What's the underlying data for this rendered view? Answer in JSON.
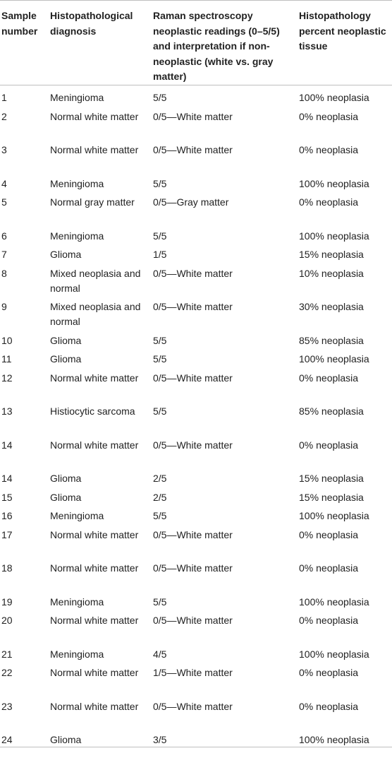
{
  "headers": [
    "Sample number",
    "Histopathological diagnosis",
    "Raman spectroscopy neoplastic readings (0–5/5) and interpretation if non-neoplastic (white vs. gray matter)",
    "Histopathology percent neoplastic tissue"
  ],
  "rows": [
    {
      "n": "1",
      "dx": "Meningioma",
      "raman": "5/5",
      "pct": "100% neoplasia"
    },
    {
      "n": "2",
      "dx": "Normal white matter",
      "raman": "0/5—White matter",
      "pct": "0% neoplasia"
    },
    {
      "n": "3",
      "dx": "Normal white matter",
      "raman": "0/5—White matter",
      "pct": "0% neoplasia"
    },
    {
      "n": "4",
      "dx": "Meningioma",
      "raman": "5/5",
      "pct": "100% neoplasia"
    },
    {
      "n": "5",
      "dx": "Normal gray matter",
      "raman": "0/5—Gray matter",
      "pct": "0% neoplasia"
    },
    {
      "n": "6",
      "dx": "Meningioma",
      "raman": "5/5",
      "pct": "100% neoplasia"
    },
    {
      "n": "7",
      "dx": "Glioma",
      "raman": "1/5",
      "pct": "15% neoplasia"
    },
    {
      "n": "8",
      "dx": "Mixed neoplasia and normal",
      "raman": "0/5—White matter",
      "pct": "10% neoplasia"
    },
    {
      "n": "9",
      "dx": "Mixed neoplasia and normal",
      "raman": "0/5—White matter",
      "pct": "30% neoplasia"
    },
    {
      "n": "10",
      "dx": "Glioma",
      "raman": "5/5",
      "pct": "85% neoplasia"
    },
    {
      "n": "11",
      "dx": "Glioma",
      "raman": "5/5",
      "pct": "100% neoplasia"
    },
    {
      "n": "12",
      "dx": "Normal white matter",
      "raman": "0/5—White matter",
      "pct": "0% neoplasia"
    },
    {
      "n": "13",
      "dx": "Histiocytic sarcoma",
      "raman": "5/5",
      "pct": "85% neoplasia"
    },
    {
      "n": "14",
      "dx": "Normal white matter",
      "raman": "0/5—White matter",
      "pct": "0% neoplasia"
    },
    {
      "n": "14",
      "dx": "Glioma",
      "raman": "2/5",
      "pct": "15% neoplasia"
    },
    {
      "n": "15",
      "dx": "Glioma",
      "raman": "2/5",
      "pct": "15% neoplasia"
    },
    {
      "n": "16",
      "dx": "Meningioma",
      "raman": "5/5",
      "pct": "100% neoplasia"
    },
    {
      "n": "17",
      "dx": "Normal white matter",
      "raman": "0/5—White matter",
      "pct": "0% neoplasia"
    },
    {
      "n": "18",
      "dx": "Normal white matter",
      "raman": "0/5—White matter",
      "pct": "0% neoplasia"
    },
    {
      "n": "19",
      "dx": "Meningioma",
      "raman": "5/5",
      "pct": "100% neoplasia"
    },
    {
      "n": "20",
      "dx": "Normal white matter",
      "raman": "0/5—White matter",
      "pct": "0% neoplasia"
    },
    {
      "n": "21",
      "dx": "Meningioma",
      "raman": "4/5",
      "pct": "100% neoplasia"
    },
    {
      "n": "22",
      "dx": "Normal white matter",
      "raman": "1/5—White matter",
      "pct": "0% neoplasia"
    },
    {
      "n": "23",
      "dx": "Normal white matter",
      "raman": "0/5—White matter",
      "pct": "0% neoplasia"
    },
    {
      "n": "24",
      "dx": "Glioma",
      "raman": "3/5",
      "pct": "100% neoplasia"
    }
  ]
}
